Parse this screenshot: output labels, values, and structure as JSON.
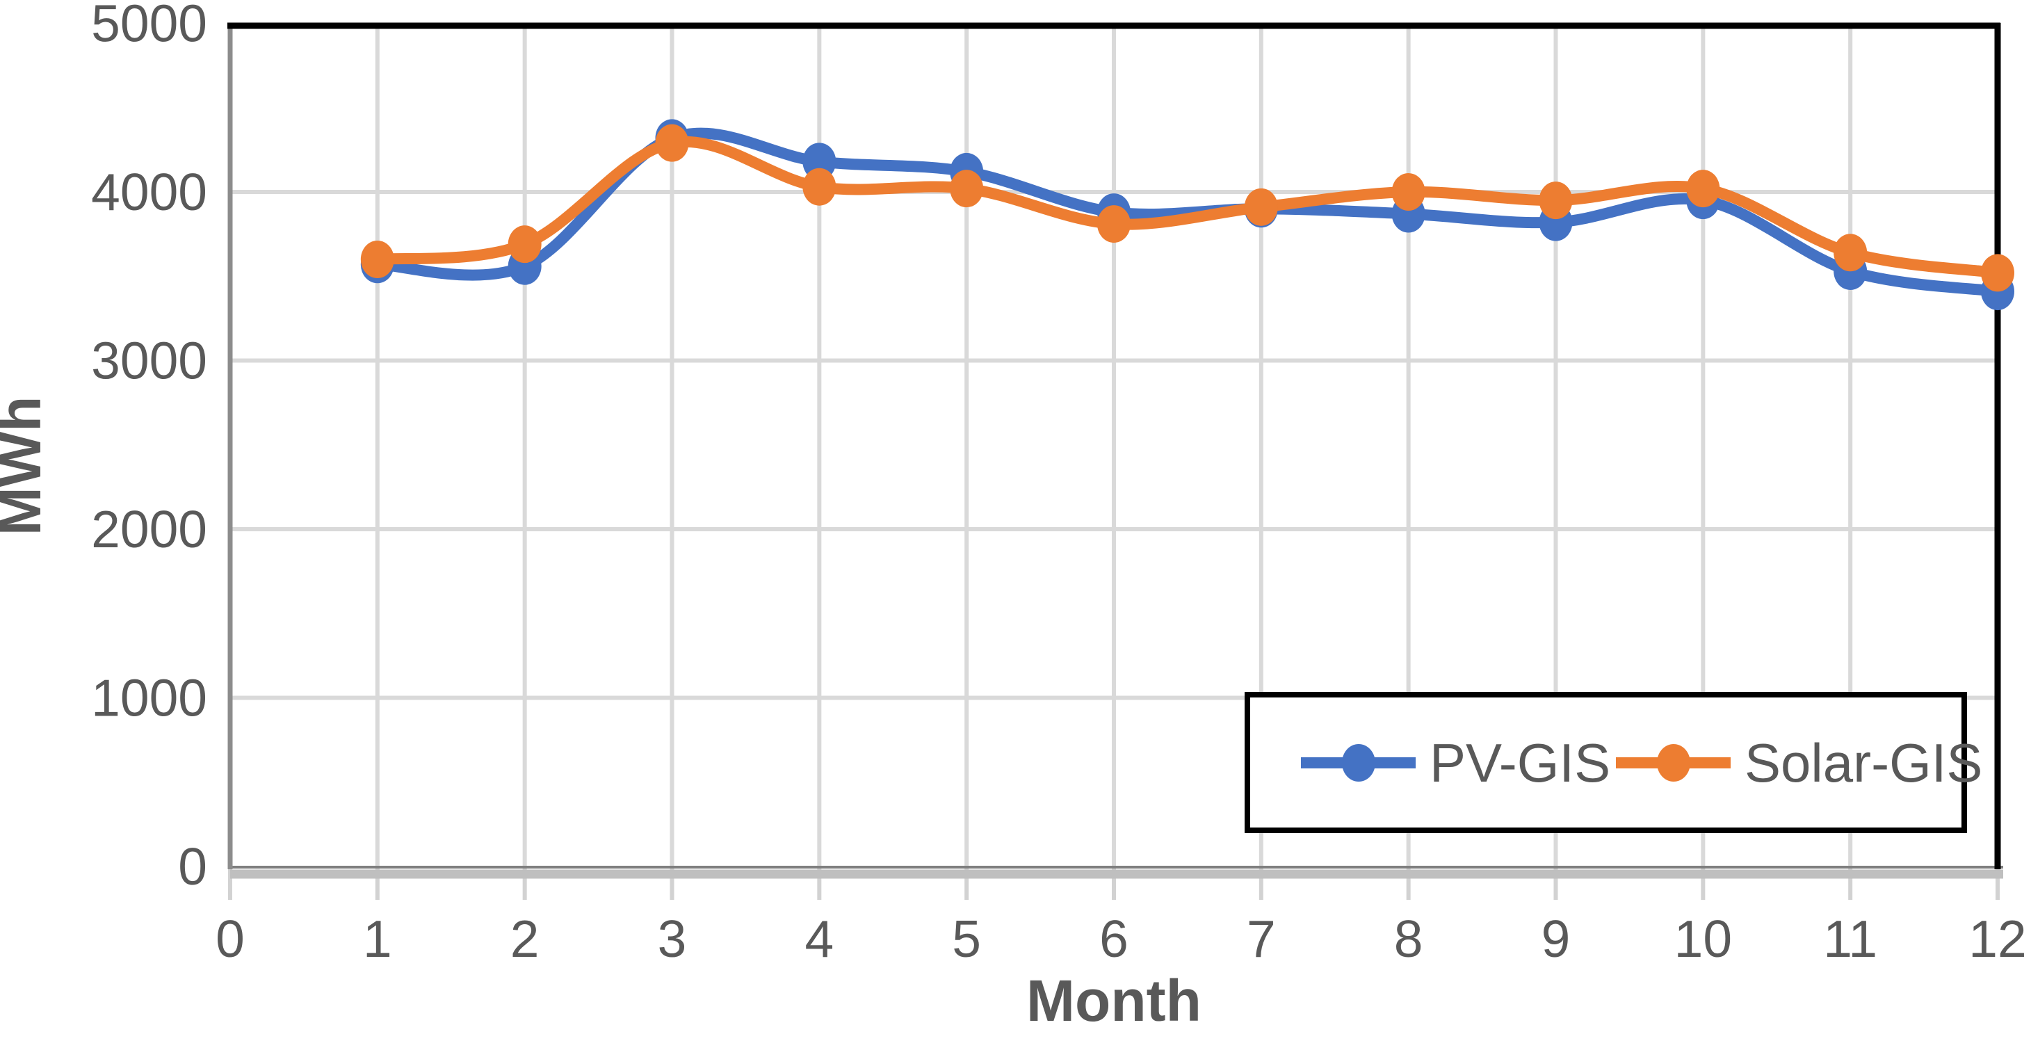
{
  "chart_data": {
    "type": "line",
    "title": "",
    "xlabel": "Month",
    "ylabel": "MWh",
    "x": [
      1,
      2,
      3,
      4,
      5,
      6,
      7,
      8,
      9,
      10,
      11,
      12
    ],
    "xlim": [
      0,
      12
    ],
    "ylim": [
      0,
      5000
    ],
    "x_ticks": [
      0,
      1,
      2,
      3,
      4,
      5,
      6,
      7,
      8,
      9,
      10,
      11,
      12
    ],
    "y_ticks": [
      0,
      1000,
      2000,
      3000,
      4000,
      5000
    ],
    "grid": true,
    "smooth_lines": true,
    "legend_position": "inside-bottom-right",
    "series": [
      {
        "name": "PV-GIS",
        "color": "#4472C4",
        "values": [
          3570,
          3560,
          4320,
          4180,
          4120,
          3880,
          3900,
          3870,
          3820,
          3950,
          3530,
          3410
        ]
      },
      {
        "name": "Solar-GIS",
        "color": "#ED7D31",
        "values": [
          3600,
          3690,
          4290,
          4030,
          4020,
          3810,
          3910,
          4000,
          3950,
          4020,
          3640,
          3520
        ]
      }
    ]
  },
  "styles": {
    "text_color": "#595959",
    "gridline_color": "#D9D9D9",
    "x_tick_color": "#D2D2D2",
    "axis_left_color": "#8C8C8C",
    "axis_bottom_dark": "#7F7F7F",
    "axis_bottom_band": "#BFBFBF",
    "plot_border_color": "#000000",
    "background": "#FFFFFF"
  }
}
